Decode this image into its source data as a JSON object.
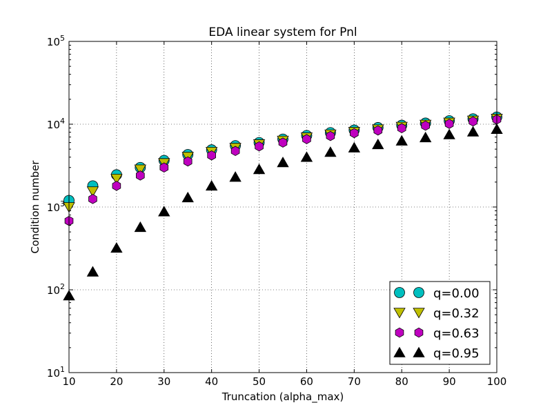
{
  "chart_data": {
    "type": "scatter",
    "title": "EDA linear system for Pnl",
    "xlabel": "Truncation (alpha_max)",
    "ylabel": "Condition number",
    "xlim": [
      10,
      100
    ],
    "ylim": [
      10,
      100000
    ],
    "yscale": "log",
    "grid": true,
    "legend_position": "bottom-right",
    "x_ticks": [
      10,
      20,
      30,
      40,
      50,
      60,
      70,
      80,
      90,
      100
    ],
    "y_ticks": [
      {
        "base": "10",
        "exp": "1",
        "value": 10
      },
      {
        "base": "10",
        "exp": "2",
        "value": 100
      },
      {
        "base": "10",
        "exp": "3",
        "value": 1000
      },
      {
        "base": "10",
        "exp": "4",
        "value": 10000
      },
      {
        "base": "10",
        "exp": "5",
        "value": 100000
      }
    ],
    "x": [
      10,
      15,
      20,
      25,
      30,
      35,
      40,
      45,
      50,
      55,
      60,
      65,
      70,
      75,
      80,
      85,
      90,
      95,
      100
    ],
    "series": [
      {
        "name": "q=0.00",
        "marker": "circle",
        "color": "#00bfbf",
        "values": [
          1200,
          1800,
          2450,
          3000,
          3650,
          4300,
          4900,
          5500,
          6000,
          6600,
          7300,
          7900,
          8500,
          9100,
          9700,
          10300,
          11000,
          11600,
          12200
        ]
      },
      {
        "name": "q=0.32",
        "marker": "triangle-down",
        "color": "#bfbf00",
        "values": [
          1000,
          1550,
          2200,
          2850,
          3400,
          4050,
          4650,
          5200,
          5750,
          6350,
          6950,
          7550,
          8100,
          8700,
          9350,
          9900,
          10500,
          11100,
          11700
        ]
      },
      {
        "name": "q=0.63",
        "marker": "hexagon",
        "color": "#bf00bf",
        "values": [
          680,
          1250,
          1800,
          2400,
          3000,
          3550,
          4200,
          4750,
          5400,
          6000,
          6600,
          7200,
          7800,
          8400,
          8950,
          9600,
          10100,
          10800,
          11400
        ]
      },
      {
        "name": "q=0.95",
        "marker": "triangle-up",
        "color": "#000000",
        "values": [
          85,
          165,
          320,
          570,
          880,
          1300,
          1800,
          2300,
          2850,
          3450,
          4000,
          4600,
          5200,
          5700,
          6300,
          6900,
          7500,
          8100,
          8700
        ]
      }
    ]
  }
}
